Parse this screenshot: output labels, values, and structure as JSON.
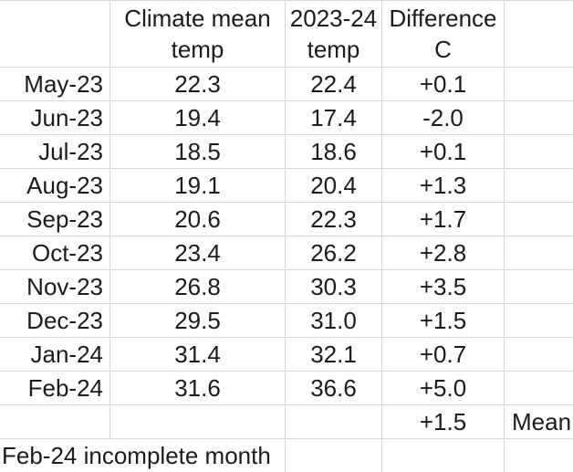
{
  "header": {
    "climate_col": {
      "line1": "Climate mean",
      "line2": "temp"
    },
    "temp_col": {
      "line1": "2023-24",
      "line2": "temp"
    },
    "diff_col": {
      "line1": "Difference",
      "line2": "C"
    }
  },
  "rows": [
    {
      "month": "May-23",
      "climate_mean": "22.3",
      "temp_2324": "22.4",
      "difference": "+0.1"
    },
    {
      "month": "Jun-23",
      "climate_mean": "19.4",
      "temp_2324": "17.4",
      "difference": "-2.0"
    },
    {
      "month": "Jul-23",
      "climate_mean": "18.5",
      "temp_2324": "18.6",
      "difference": "+0.1"
    },
    {
      "month": "Aug-23",
      "climate_mean": "19.1",
      "temp_2324": "20.4",
      "difference": "+1.3"
    },
    {
      "month": "Sep-23",
      "climate_mean": "20.6",
      "temp_2324": "22.3",
      "difference": "+1.7"
    },
    {
      "month": "Oct-23",
      "climate_mean": "23.4",
      "temp_2324": "26.2",
      "difference": "+2.8"
    },
    {
      "month": "Nov-23",
      "climate_mean": "26.8",
      "temp_2324": "30.3",
      "difference": "+3.5"
    },
    {
      "month": "Dec-23",
      "climate_mean": "29.5",
      "temp_2324": "31.0",
      "difference": "+1.5"
    },
    {
      "month": "Jan-24",
      "climate_mean": "31.4",
      "temp_2324": "32.1",
      "difference": "+0.7"
    },
    {
      "month": "Feb-24",
      "climate_mean": "31.6",
      "temp_2324": "36.6",
      "difference": "+5.0"
    }
  ],
  "summary": {
    "difference_mean": "+1.5",
    "mean_label": "Mean"
  },
  "footnote": "Feb-24 incomplete month",
  "colors": {
    "gridline": "#d5d5d5",
    "text": "#1b1b1b",
    "background": "#ffffff"
  }
}
